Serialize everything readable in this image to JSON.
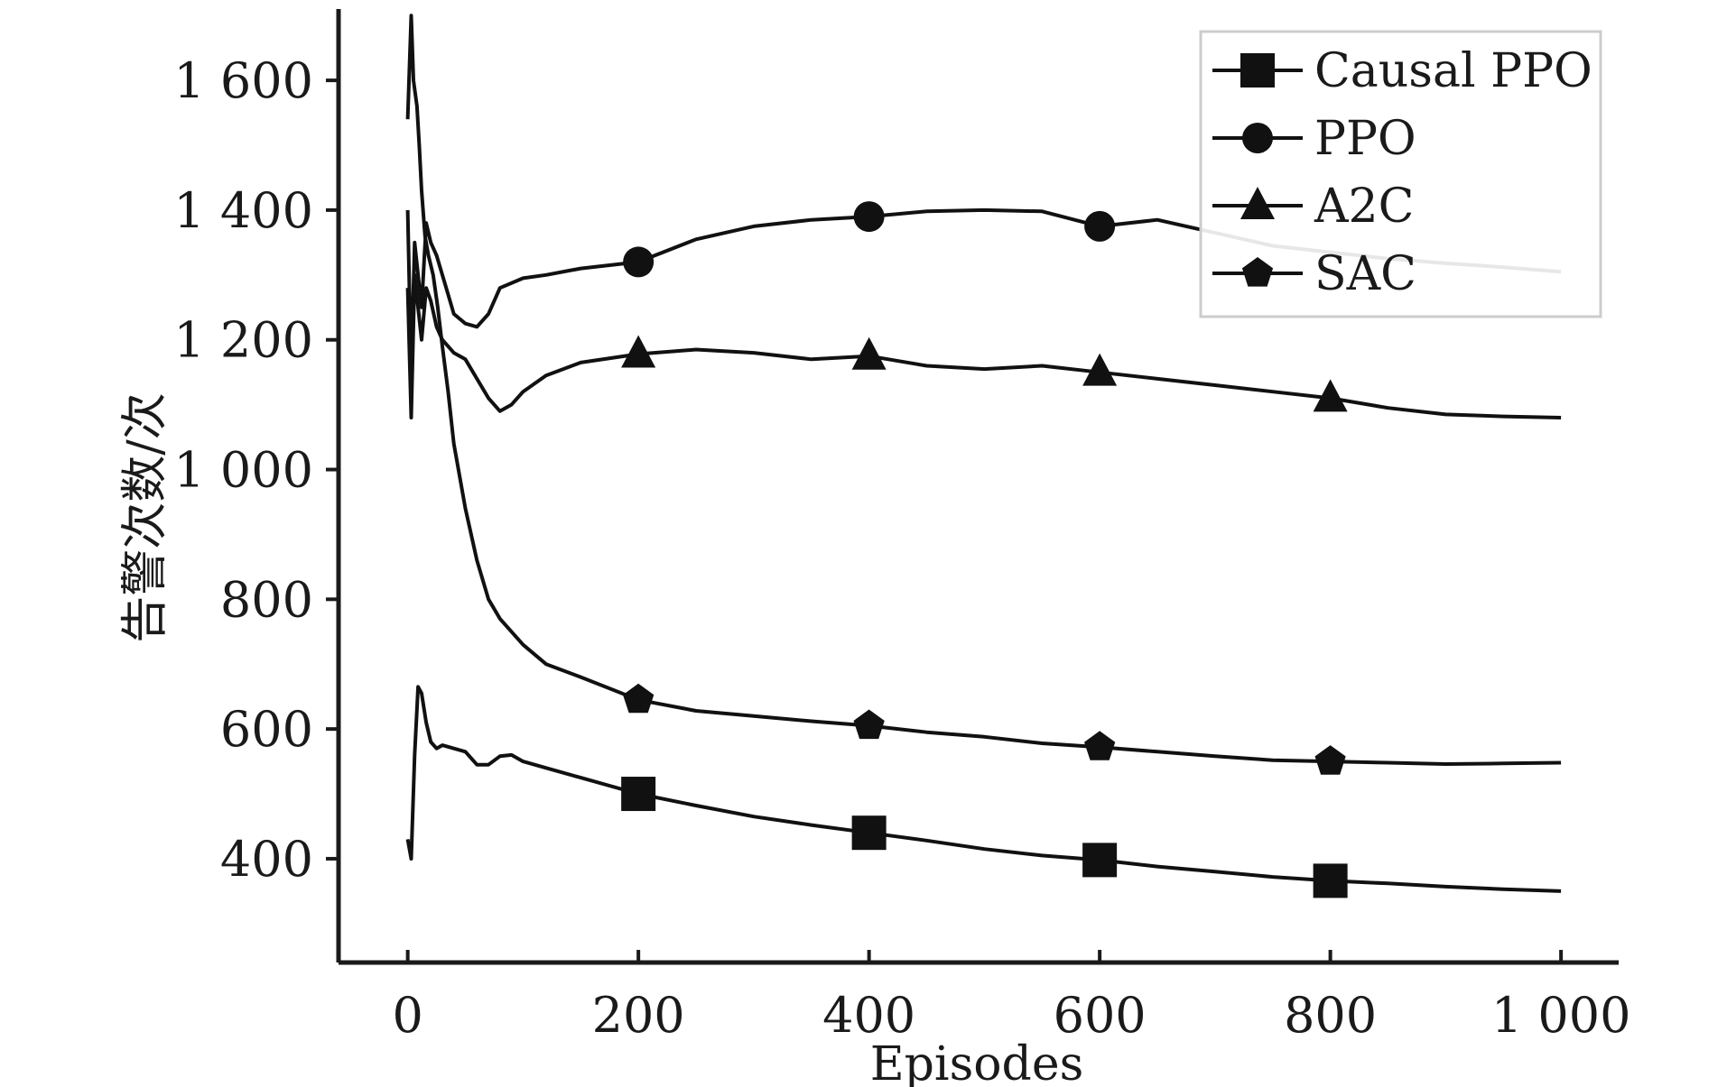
{
  "chart_data": {
    "type": "line",
    "xlabel": "Episodes",
    "ylabel": "告警次数/次",
    "xlim": [
      -60,
      1050
    ],
    "ylim": [
      240,
      1710
    ],
    "x_ticks": [
      0,
      200,
      400,
      600,
      800,
      1000
    ],
    "x_tick_labels": [
      "0",
      "200",
      "400",
      "600",
      "800",
      "1 000"
    ],
    "y_ticks": [
      400,
      600,
      800,
      1000,
      1200,
      1400,
      1600
    ],
    "y_tick_labels": [
      "400",
      "600",
      "800",
      "1 000",
      "1 200",
      "1 400",
      "1 600"
    ],
    "grid": false,
    "legend_position": "top-right",
    "series": [
      {
        "name": "Causal PPO",
        "marker": "square",
        "markers_at": [
          200,
          400,
          600,
          800
        ],
        "x": [
          0,
          3,
          6,
          9,
          12,
          16,
          20,
          25,
          30,
          40,
          50,
          60,
          70,
          80,
          90,
          100,
          120,
          150,
          200,
          250,
          300,
          350,
          400,
          450,
          500,
          550,
          600,
          650,
          700,
          750,
          800,
          850,
          900,
          950,
          1000
        ],
        "y": [
          430,
          400,
          560,
          665,
          655,
          610,
          580,
          570,
          575,
          570,
          565,
          545,
          545,
          558,
          560,
          550,
          540,
          525,
          500,
          482,
          465,
          452,
          440,
          428,
          415,
          405,
          398,
          388,
          380,
          372,
          366,
          362,
          357,
          353,
          350
        ]
      },
      {
        "name": "PPO",
        "marker": "circle",
        "markers_at": [
          200,
          400,
          600
        ],
        "x": [
          0,
          3,
          6,
          9,
          12,
          16,
          20,
          25,
          30,
          35,
          40,
          50,
          60,
          70,
          80,
          100,
          120,
          150,
          200,
          250,
          300,
          350,
          400,
          450,
          500,
          550,
          600,
          650,
          700,
          750,
          800,
          850,
          900,
          950,
          1000
        ],
        "y": [
          1400,
          1150,
          1350,
          1300,
          1250,
          1380,
          1350,
          1330,
          1300,
          1270,
          1240,
          1225,
          1220,
          1240,
          1280,
          1295,
          1300,
          1310,
          1320,
          1355,
          1375,
          1385,
          1390,
          1398,
          1400,
          1398,
          1375,
          1385,
          1365,
          1345,
          1335,
          1325,
          1318,
          1312,
          1305
        ]
      },
      {
        "name": "A2C",
        "marker": "triangle",
        "markers_at": [
          200,
          400,
          600,
          800
        ],
        "x": [
          0,
          3,
          6,
          9,
          12,
          16,
          20,
          25,
          30,
          40,
          50,
          60,
          70,
          80,
          90,
          100,
          120,
          150,
          200,
          250,
          300,
          350,
          400,
          450,
          500,
          550,
          600,
          650,
          700,
          750,
          800,
          850,
          900,
          950,
          1000
        ],
        "y": [
          1280,
          1080,
          1300,
          1250,
          1200,
          1280,
          1260,
          1220,
          1200,
          1180,
          1170,
          1140,
          1110,
          1090,
          1100,
          1120,
          1145,
          1165,
          1178,
          1185,
          1180,
          1170,
          1175,
          1160,
          1155,
          1160,
          1150,
          1140,
          1130,
          1120,
          1110,
          1095,
          1085,
          1082,
          1080
        ]
      },
      {
        "name": "SAC",
        "marker": "pentagon",
        "markers_at": [
          200,
          400,
          600,
          800
        ],
        "x": [
          0,
          3,
          5,
          8,
          10,
          12,
          15,
          18,
          22,
          26,
          30,
          35,
          40,
          50,
          60,
          70,
          80,
          90,
          100,
          120,
          150,
          200,
          250,
          300,
          350,
          400,
          450,
          500,
          550,
          600,
          650,
          700,
          750,
          800,
          850,
          900,
          950,
          1000
        ],
        "y": [
          1540,
          1700,
          1600,
          1560,
          1500,
          1430,
          1360,
          1330,
          1300,
          1250,
          1190,
          1120,
          1040,
          940,
          860,
          800,
          770,
          750,
          730,
          700,
          680,
          645,
          628,
          620,
          612,
          605,
          595,
          588,
          578,
          572,
          565,
          558,
          552,
          550,
          548,
          546,
          547,
          548
        ]
      }
    ]
  }
}
